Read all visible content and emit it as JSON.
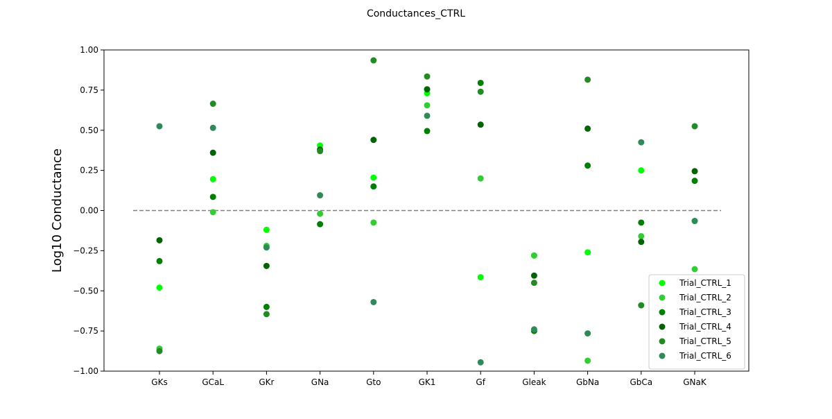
{
  "chart_data": {
    "type": "scatter",
    "title": "Conductances_CTRL",
    "xlabel": "",
    "ylabel": "Log10 Conductance",
    "categories": [
      "GKs",
      "GCaL",
      "GKr",
      "GNa",
      "Gto",
      "GK1",
      "Gf",
      "Gleak",
      "GbNa",
      "GbCa",
      "GNaK"
    ],
    "ylim": [
      -1.0,
      1.0
    ],
    "yticks": [
      -1.0,
      -0.75,
      -0.5,
      -0.25,
      0.0,
      0.25,
      0.5,
      0.75,
      1.0
    ],
    "ytick_labels": [
      "−1.00",
      "−0.75",
      "−0.50",
      "−0.25",
      "0.00",
      "0.25",
      "0.50",
      "0.75",
      "1.00"
    ],
    "reference_line": {
      "y": 0.0,
      "style": "dashed",
      "color": "#808080"
    },
    "grid": false,
    "legend_position": "lower-right",
    "series": [
      {
        "name": "Trial_CTRL_1",
        "color": "#00ff00",
        "values": [
          -0.48,
          0.195,
          -0.12,
          0.405,
          0.205,
          0.73,
          -0.415,
          -0.28,
          -0.26,
          0.25,
          -0.065
        ]
      },
      {
        "name": "Trial_CTRL_2",
        "color": "#32cd32",
        "values": [
          -0.86,
          -0.01,
          -0.22,
          -0.02,
          -0.075,
          0.655,
          0.2,
          -0.28,
          -0.935,
          -0.16,
          -0.365
        ]
      },
      {
        "name": "Trial_CTRL_3",
        "color": "#008000",
        "values": [
          -0.315,
          0.085,
          -0.6,
          -0.085,
          0.15,
          0.495,
          0.795,
          -0.75,
          0.28,
          -0.075,
          0.185
        ]
      },
      {
        "name": "Trial_CTRL_4",
        "color": "#006400",
        "values": [
          -0.185,
          0.36,
          -0.345,
          0.38,
          0.44,
          0.755,
          0.535,
          -0.405,
          0.51,
          -0.195,
          0.245
        ]
      },
      {
        "name": "Trial_CTRL_5",
        "color": "#228b22",
        "values": [
          -0.875,
          0.665,
          -0.645,
          0.37,
          0.935,
          0.835,
          0.74,
          -0.45,
          0.815,
          -0.59,
          0.525
        ]
      },
      {
        "name": "Trial_CTRL_6",
        "color": "#2e8b57",
        "values": [
          0.525,
          0.515,
          -0.23,
          0.095,
          -0.57,
          0.59,
          -0.945,
          -0.74,
          -0.765,
          0.425,
          -0.065
        ]
      }
    ]
  }
}
